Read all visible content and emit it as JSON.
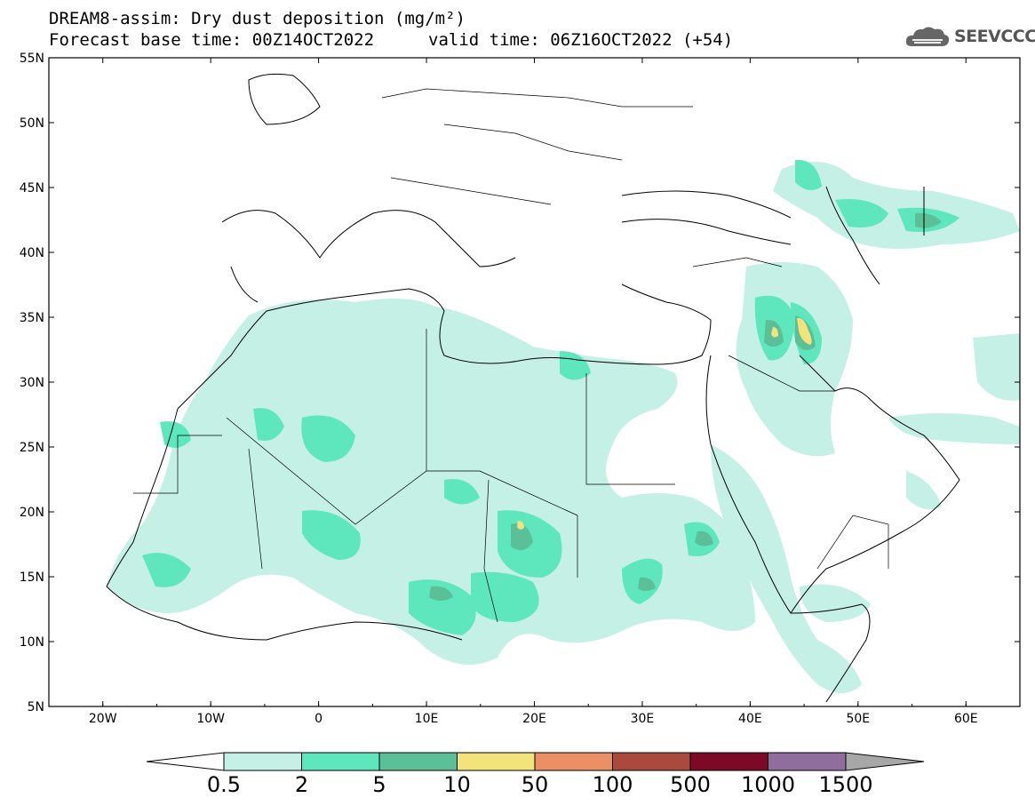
{
  "title": {
    "line1": "DREAM8-assim: Dry dust deposition (mg/m²)",
    "line2": "Forecast base time: 00Z14OCT2022",
    "valid": "valid time: 06Z16OCT2022 (+54)"
  },
  "logo": {
    "text": "SEEVCCC",
    "icon": "cloud-logo-icon",
    "color": "#555555"
  },
  "map": {
    "lon_range": [
      -25,
      65
    ],
    "lat_range": [
      5,
      55
    ],
    "lon_ticks": [
      "20W",
      "10W",
      "0",
      "10E",
      "20E",
      "30E",
      "40E",
      "50E",
      "60E"
    ],
    "lat_ticks": [
      "55N",
      "50N",
      "45N",
      "40N",
      "35N",
      "30N",
      "25N",
      "20N",
      "15N",
      "10N",
      "5N"
    ],
    "field": "Dry dust deposition"
  },
  "legend": {
    "labels": [
      "0.5",
      "2",
      "5",
      "10",
      "50",
      "100",
      "500",
      "1000",
      "1500"
    ],
    "colors": [
      "#c4f0e6",
      "#5ee6bc",
      "#5bbf98",
      "#f2e47a",
      "#eb8f66",
      "#aa4a3f",
      "#7c0a26",
      "#8f6e9e"
    ],
    "over_color": "#a7a7a7",
    "under_color": "#ffffff"
  }
}
